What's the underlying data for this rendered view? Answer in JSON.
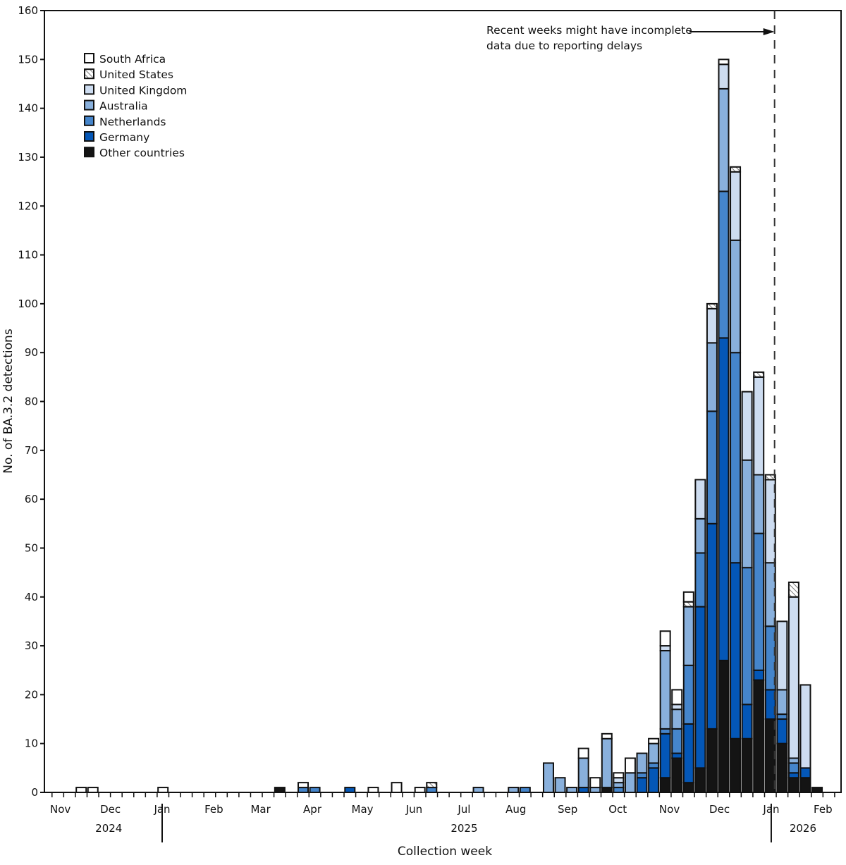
{
  "chart_data": {
    "type": "bar",
    "stacked": true,
    "title": "",
    "xlabel": "Collection week",
    "ylabel": "No. of BA.3.2 detections",
    "ylim": [
      0,
      160
    ],
    "yticks": [
      0,
      10,
      20,
      30,
      40,
      50,
      60,
      70,
      80,
      90,
      100,
      110,
      120,
      130,
      140,
      150,
      160
    ],
    "xlim": [
      "2024-11-03",
      "2026-02-07"
    ],
    "grid": false,
    "legend_position": "top-left",
    "month_ticks": [
      {
        "date": "2024-11-01",
        "label": "Nov"
      },
      {
        "date": "2024-12-01",
        "label": "Dec"
      },
      {
        "date": "2025-01-01",
        "label": "Jan"
      },
      {
        "date": "2025-02-01",
        "label": "Feb"
      },
      {
        "date": "2025-03-01",
        "label": "Mar"
      },
      {
        "date": "2025-04-01",
        "label": "Apr"
      },
      {
        "date": "2025-05-01",
        "label": "May"
      },
      {
        "date": "2025-06-01",
        "label": "Jun"
      },
      {
        "date": "2025-07-01",
        "label": "Jul"
      },
      {
        "date": "2025-08-01",
        "label": "Aug"
      },
      {
        "date": "2025-09-01",
        "label": "Sep"
      },
      {
        "date": "2025-10-01",
        "label": "Oct"
      },
      {
        "date": "2025-11-01",
        "label": "Nov"
      },
      {
        "date": "2025-12-01",
        "label": "Dec"
      },
      {
        "date": "2026-01-01",
        "label": "Jan"
      },
      {
        "date": "2026-02-01",
        "label": "Feb"
      }
    ],
    "year_labels": [
      {
        "label": "2024",
        "center": "2024-11-30"
      },
      {
        "label": "2025",
        "center": "2025-07-01"
      },
      {
        "label": "2026",
        "center": "2026-01-20"
      }
    ],
    "year_separators": [
      "2025-01-01",
      "2026-01-01"
    ],
    "annotation": {
      "line1": "Recent weeks might have incomplete",
      "line2": "data due to reporting delays",
      "cutoff_date": "2026-01-03"
    },
    "categories": [
      "2024-11-10",
      "2024-11-17",
      "2024-12-29",
      "2025-03-09",
      "2025-03-23",
      "2025-03-30",
      "2025-04-20",
      "2025-05-04",
      "2025-05-18",
      "2025-06-01",
      "2025-06-08",
      "2025-07-06",
      "2025-07-27",
      "2025-08-03",
      "2025-08-17",
      "2025-08-24",
      "2025-08-31",
      "2025-09-07",
      "2025-09-14",
      "2025-09-21",
      "2025-09-28",
      "2025-10-05",
      "2025-10-12",
      "2025-10-19",
      "2025-10-26",
      "2025-11-02",
      "2025-11-09",
      "2025-11-16",
      "2025-11-23",
      "2025-11-30",
      "2025-12-07",
      "2025-12-14",
      "2025-12-21",
      "2025-12-28",
      "2026-01-04",
      "2026-01-11",
      "2026-01-18",
      "2026-01-25"
    ],
    "series": [
      {
        "name": "Other countries",
        "color": "#141414",
        "values": [
          0,
          0,
          0,
          1,
          0,
          0,
          0,
          0,
          0,
          0,
          0,
          0,
          0,
          0,
          0,
          0,
          0,
          0,
          0,
          1,
          0,
          0,
          0,
          0,
          3,
          7,
          2,
          5,
          13,
          27,
          11,
          11,
          23,
          15,
          10,
          3,
          3,
          1
        ]
      },
      {
        "name": "Germany",
        "color": "#0457b7",
        "values": [
          0,
          0,
          0,
          0,
          0,
          0,
          1,
          0,
          0,
          0,
          0,
          0,
          0,
          0,
          0,
          0,
          0,
          1,
          0,
          0,
          0,
          0,
          3,
          5,
          9,
          1,
          12,
          33,
          42,
          66,
          36,
          7,
          2,
          6,
          5,
          1,
          2,
          0
        ]
      },
      {
        "name": "Netherlands",
        "color": "#4585cb",
        "values": [
          0,
          0,
          0,
          0,
          1,
          1,
          0,
          0,
          0,
          0,
          1,
          0,
          0,
          1,
          0,
          0,
          0,
          0,
          0,
          0,
          1,
          0,
          1,
          1,
          1,
          5,
          12,
          11,
          23,
          30,
          43,
          28,
          28,
          13,
          1,
          2,
          0,
          0
        ]
      },
      {
        "name": "Australia",
        "color": "#89b0dc",
        "values": [
          0,
          0,
          0,
          0,
          0,
          0,
          0,
          0,
          0,
          0,
          0,
          1,
          1,
          0,
          6,
          3,
          1,
          6,
          1,
          10,
          1,
          4,
          4,
          4,
          16,
          4,
          12,
          7,
          14,
          21,
          23,
          22,
          12,
          13,
          5,
          1,
          0,
          0
        ]
      },
      {
        "name": "United Kingdom",
        "color": "#cddcf0",
        "values": [
          0,
          0,
          0,
          0,
          0,
          0,
          0,
          0,
          0,
          0,
          0,
          0,
          0,
          0,
          0,
          0,
          0,
          0,
          0,
          0,
          1,
          0,
          0,
          0,
          1,
          1,
          0,
          8,
          7,
          5,
          14,
          14,
          20,
          17,
          14,
          33,
          17,
          0
        ]
      },
      {
        "name": "United States",
        "color": "hatched",
        "values": [
          0,
          0,
          0,
          0,
          0,
          0,
          0,
          0,
          0,
          0,
          1,
          0,
          0,
          0,
          0,
          0,
          0,
          0,
          0,
          0,
          0,
          0,
          0,
          0,
          0,
          0,
          1,
          0,
          1,
          0,
          1,
          0,
          1,
          1,
          0,
          3,
          0,
          0
        ]
      },
      {
        "name": "South Africa",
        "color": "#ffffff",
        "values": [
          1,
          1,
          1,
          0,
          1,
          0,
          0,
          1,
          2,
          1,
          0,
          0,
          0,
          0,
          0,
          0,
          0,
          2,
          2,
          1,
          1,
          3,
          0,
          1,
          3,
          3,
          2,
          0,
          0,
          1,
          0,
          0,
          0,
          0,
          0,
          0,
          0,
          0
        ]
      }
    ],
    "legend_order": [
      "South Africa",
      "United States",
      "United Kingdom",
      "Australia",
      "Netherlands",
      "Germany",
      "Other countries"
    ]
  }
}
